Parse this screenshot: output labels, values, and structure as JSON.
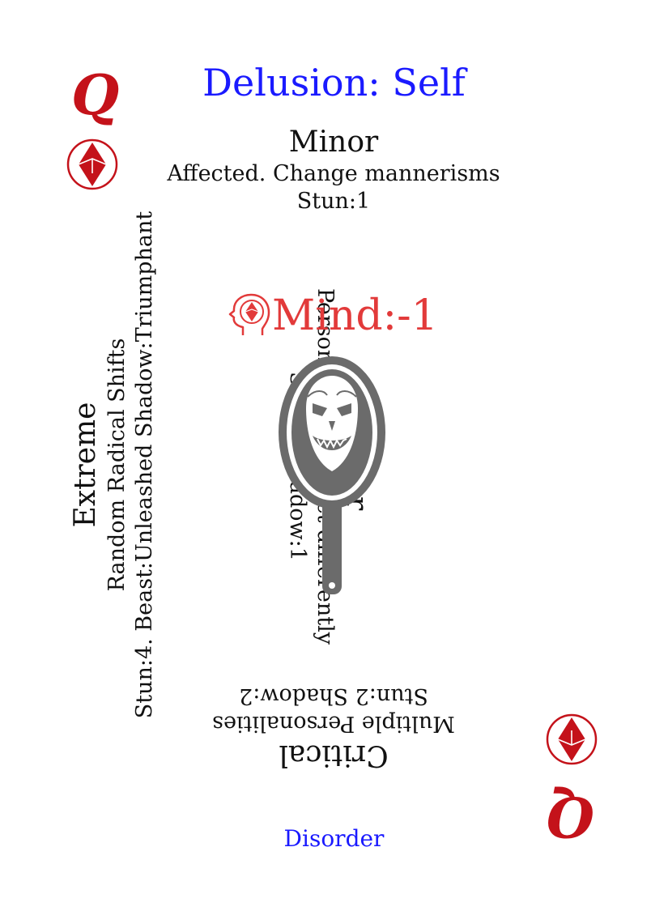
{
  "card": {
    "title": "Delusion: Self",
    "rank": "Q",
    "suit_icon": "diamond-suit-icon",
    "footer": "Disorder",
    "colors": {
      "title": "#1a1aff",
      "rank": "#c4121a",
      "mind": "#e23a3a",
      "mirror": "#6b6b6b"
    }
  },
  "mind": {
    "label": "Mind:-1",
    "icon": "head-with-diamond-icon"
  },
  "art": {
    "icon": "haunted-hand-mirror-icon"
  },
  "minor": {
    "severity": "Minor",
    "description": "Affected. Change mannerisms",
    "stats": "Stun:1"
  },
  "major": {
    "severity": "Major",
    "description": "Personality Shift. Act differently",
    "stats": "Stun:1 Shadow:1"
  },
  "critical": {
    "severity": "Critical",
    "description": "Multiple Personalities",
    "stats": "Stun:2 Shadow:2"
  },
  "extreme": {
    "severity": "Extreme",
    "description": "Random Radical Shifts",
    "stats": "Stun:4. Beast:Unleashed Shadow:Triumphant"
  }
}
